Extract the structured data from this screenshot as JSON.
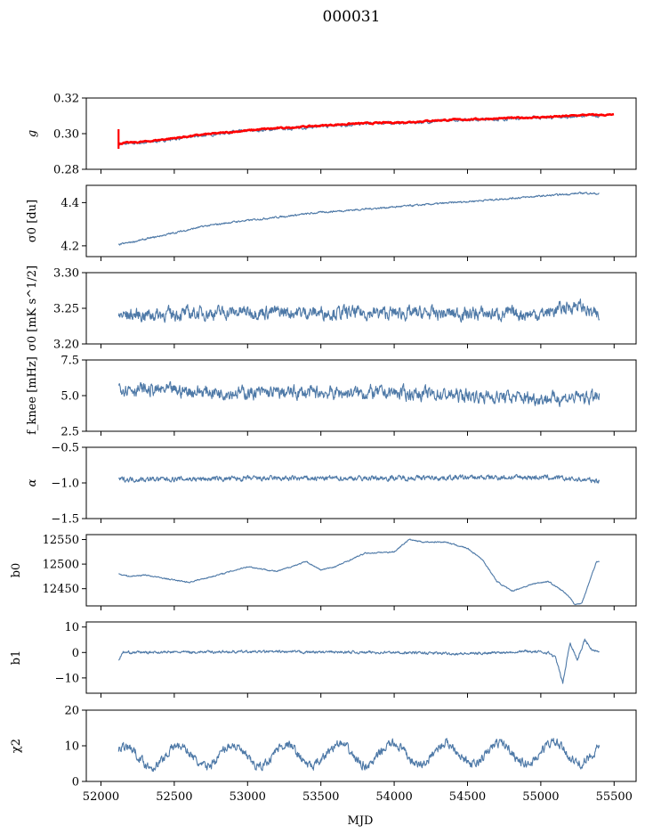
{
  "figure": {
    "title": "000031",
    "xlabel": "MJD"
  },
  "chart_data": {
    "type": "line",
    "title": "000031",
    "xlabel": "MJD",
    "xlim": [
      51900,
      55650
    ],
    "x_ticks": [
      52000,
      52500,
      53000,
      53500,
      54000,
      54500,
      55000,
      55500
    ],
    "x_tick_labels": [
      "52000",
      "52500",
      "53000",
      "53500",
      "54000",
      "54500",
      "55000",
      "55500"
    ],
    "series_color": "#4e79a7",
    "fit_color": "#ff0000",
    "panels": [
      {
        "ylabel": "g",
        "ylim": [
          0.28,
          0.32
        ],
        "yticks": [
          0.28,
          0.3,
          0.32
        ],
        "ytick_labels": [
          "0.28",
          "0.30",
          "0.32"
        ],
        "series": [
          {
            "kind": "data",
            "x": [
              52120,
              52300,
              52500,
              52700,
              52900,
              53100,
              53300,
              53500,
              53700,
              53900,
              54100,
              54300,
              54500,
              54700,
              54900,
              55100,
              55300,
              55400
            ],
            "values": [
              0.294,
              0.295,
              0.297,
              0.299,
              0.301,
              0.302,
              0.303,
              0.304,
              0.305,
              0.306,
              0.306,
              0.307,
              0.308,
              0.308,
              0.309,
              0.309,
              0.31,
              0.31
            ],
            "noise": 0.0008
          },
          {
            "kind": "fit",
            "x": [
              52120,
              52300,
              52500,
              52700,
              52900,
              53100,
              53300,
              53500,
              53700,
              53900,
              54100,
              54300,
              54500,
              54700,
              54900,
              55100,
              55300,
              55500
            ],
            "values": [
              0.2945,
              0.2955,
              0.2975,
              0.2995,
              0.301,
              0.3025,
              0.3035,
              0.3045,
              0.3055,
              0.306,
              0.3065,
              0.3075,
              0.308,
              0.3085,
              0.309,
              0.3095,
              0.3105,
              0.3105
            ],
            "noise": 0.0004
          }
        ]
      },
      {
        "ylabel": "σ0 [du]",
        "ylim": [
          4.15,
          4.48
        ],
        "yticks": [
          4.2,
          4.4
        ],
        "ytick_labels": [
          "4.2",
          "4.4"
        ],
        "series": [
          {
            "kind": "data",
            "x": [
              52120,
              52300,
              52500,
              52700,
              52900,
              53100,
              53300,
              53500,
              53700,
              53900,
              54100,
              54300,
              54500,
              54700,
              54900,
              55100,
              55300,
              55400
            ],
            "values": [
              4.205,
              4.23,
              4.26,
              4.29,
              4.31,
              4.325,
              4.34,
              4.355,
              4.365,
              4.375,
              4.385,
              4.395,
              4.405,
              4.415,
              4.425,
              4.435,
              4.445,
              4.44
            ],
            "noise": 0.004
          }
        ]
      },
      {
        "ylabel": "σ0 [mK s^1/2]",
        "ylim": [
          3.2,
          3.3
        ],
        "yticks": [
          3.2,
          3.25,
          3.3
        ],
        "ytick_labels": [
          "3.20",
          "3.25",
          "3.30"
        ],
        "series": [
          {
            "kind": "data",
            "x": [
              52120,
              53000,
              54000,
              55000,
              55250,
              55400
            ],
            "values": [
              3.24,
              3.245,
              3.243,
              3.242,
              3.255,
              3.237
            ],
            "noise": 0.009
          }
        ]
      },
      {
        "ylabel": "f_knee [mHz]",
        "ylim": [
          2.5,
          7.5
        ],
        "yticks": [
          2.5,
          5.0,
          7.5
        ],
        "ytick_labels": [
          "2.5",
          "5.0",
          "7.5"
        ],
        "series": [
          {
            "kind": "data",
            "x": [
              52120,
              52300,
              53000,
              54000,
              55000,
              55400
            ],
            "values": [
              5.6,
              5.4,
              5.2,
              5.2,
              4.8,
              4.9
            ],
            "noise": 0.45
          }
        ]
      },
      {
        "ylabel": "α",
        "ylim": [
          -1.5,
          -0.5
        ],
        "yticks": [
          -1.5,
          -1.0,
          -0.5
        ],
        "ytick_labels": [
          "−1.5",
          "−1.0",
          "−0.5"
        ],
        "series": [
          {
            "kind": "data",
            "x": [
              52120,
              53000,
              54000,
              55000,
              55400
            ],
            "values": [
              -0.95,
              -0.94,
              -0.93,
              -0.92,
              -0.97
            ],
            "noise": 0.035
          }
        ]
      },
      {
        "ylabel": "b0",
        "ylim": [
          12415,
          12560
        ],
        "yticks": [
          12450,
          12500,
          12550
        ],
        "ytick_labels": [
          "12450",
          "12500",
          "12550"
        ],
        "series": [
          {
            "kind": "data",
            "x": [
              52120,
              52200,
              52300,
              52450,
              52600,
              52800,
              53000,
              53200,
              53400,
              53500,
              53600,
              53800,
              54000,
              54100,
              54200,
              54350,
              54500,
              54600,
              54700,
              54800,
              54950,
              55050,
              55100,
              55150,
              55200,
              55230,
              55280,
              55320,
              55380,
              55400
            ],
            "values": [
              12480,
              12475,
              12478,
              12470,
              12463,
              12478,
              12495,
              12485,
              12505,
              12488,
              12495,
              12522,
              12525,
              12550,
              12545,
              12545,
              12532,
              12510,
              12465,
              12445,
              12460,
              12465,
              12455,
              12445,
              12432,
              12418,
              12420,
              12455,
              12505,
              12505
            ],
            "noise": 1.2
          }
        ]
      },
      {
        "ylabel": "b1",
        "ylim": [
          -16,
          12
        ],
        "yticks": [
          -10,
          0,
          10
        ],
        "ytick_labels": [
          "−10",
          "0",
          "10"
        ],
        "series": [
          {
            "kind": "data",
            "x": [
              52120,
              52150,
              53000,
              54000,
              54500,
              54900,
              55050,
              55100,
              55150,
              55200,
              55250,
              55300,
              55350,
              55400
            ],
            "values": [
              -3,
              0,
              0.3,
              0,
              -0.5,
              0.5,
              0,
              -2,
              -12,
              4,
              -3,
              5,
              1,
              0
            ],
            "noise": 0.5
          }
        ]
      },
      {
        "ylabel": "χ2",
        "ylim": [
          0,
          20
        ],
        "yticks": [
          0,
          10,
          20
        ],
        "ytick_labels": [
          "0",
          "10",
          "20"
        ],
        "series": [
          {
            "kind": "data",
            "x": [
              52120,
              55400
            ],
            "values": [
              7,
              8
            ],
            "seasonal_amplitude": 3,
            "seasonal_period_days": 365,
            "noise": 1.2
          }
        ]
      }
    ]
  }
}
